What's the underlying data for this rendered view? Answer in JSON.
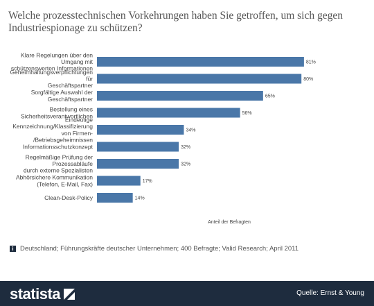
{
  "chart_data": {
    "type": "bar",
    "orientation": "horizontal",
    "title": "Welche prozesstechnischen Vorkehrungen haben Sie getroffen, um sich gegen Industriespionage zu schützen?",
    "xlabel": "Anteil der Befragten",
    "ylabel": "",
    "categories": [
      "Klare Regelungen über den Umgang mit schützenswerten Informationen",
      "Geheimhaltungsverpflichtungen für Geschäftspartner",
      "Sorgfältige Auswahl der Geschäftspartner",
      "Bestellung eines Sicherheitsverantwortlichen",
      "Eindeutige Kennzeichnung/Klassifizierung von Firmen-/Betriebsgeheimnissen",
      "Informationsschutzkonzept",
      "Regelmäßige Prüfung der Prozessabläufe durch externe Spezialisten",
      "Abhörsichere Kommunikation (Telefon, E-Mail, Fax)",
      "Clean-Desk-Policy"
    ],
    "category_lines": [
      [
        "Klare Regelungen über den",
        "Umgang mit",
        "schützenswerten Informationen"
      ],
      [
        "Geheimhaltungsverpflichtungen",
        "für",
        "Geschäftspartner"
      ],
      [
        "Sorgfältige Auswahl der",
        "Geschäftspartner"
      ],
      [
        "Bestellung eines",
        "Sicherheitsverantwortlichen"
      ],
      [
        "Eindeutige",
        "Kennzeichnung/Klassifizierung",
        "von Firmen-",
        "/Betriebsgeheimnissen"
      ],
      [
        "Informationsschutzkonzept"
      ],
      [
        "Regelmäßige Prüfung der",
        "Prozessabläufe",
        "durch externe Spezialisten"
      ],
      [
        "Abhörsichere Kommunikation",
        "(Telefon, E-Mail, Fax)"
      ],
      [
        "Clean-Desk-Policy"
      ]
    ],
    "values": [
      81,
      80,
      65,
      56,
      34,
      32,
      32,
      17,
      14
    ],
    "value_labels": [
      "81%",
      "80%",
      "65%",
      "56%",
      "34%",
      "32%",
      "32%",
      "17%",
      "14%"
    ],
    "xlim": [
      0,
      100
    ],
    "grid": false,
    "bar_color": "#4a77a8"
  },
  "footnote": "Deutschland; Führungskräfte deutscher Unternehmen; 400 Befragte; Valid Research; April 2011",
  "footer": {
    "logo_text": "statista",
    "source": "Quelle: Ernst & Young"
  },
  "colors": {
    "footer_bg": "#1e2c3e",
    "bar": "#4a77a8"
  },
  "icons": {
    "info": "info-icon",
    "logo_mark": "statista-logo-icon"
  }
}
